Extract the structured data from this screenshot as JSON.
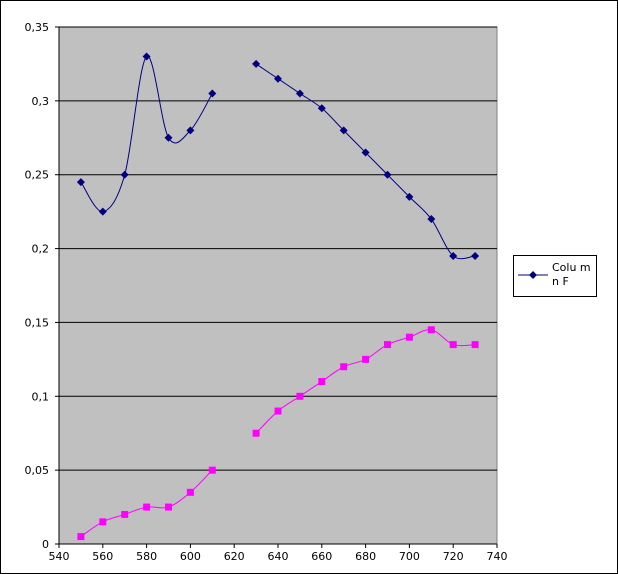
{
  "chart_data": {
    "type": "line",
    "title": "",
    "xlabel": "",
    "ylabel": "",
    "xlim": [
      540,
      740
    ],
    "ylim": [
      0,
      0.35
    ],
    "x_ticks": [
      "540",
      "560",
      "580",
      "600",
      "620",
      "640",
      "660",
      "680",
      "700",
      "720",
      "740"
    ],
    "y_ticks": [
      "0",
      "0,05",
      "0,1",
      "0,15",
      "0,2",
      "0,25",
      "0,3",
      "0,35"
    ],
    "grid": "horizontal",
    "plot_background": "#c0c0c0",
    "legend_position": "right",
    "series": [
      {
        "name": "Column F",
        "color": "#000080",
        "marker": "diamond",
        "points": [
          [
            550,
            0.245
          ],
          [
            560,
            0.225
          ],
          [
            570,
            0.25
          ],
          [
            580,
            0.33
          ],
          [
            590,
            0.275
          ],
          [
            600,
            0.28
          ],
          [
            610,
            0.305
          ],
          [
            630,
            0.325
          ],
          [
            640,
            0.315
          ],
          [
            650,
            0.305
          ],
          [
            660,
            0.295
          ],
          [
            670,
            0.28
          ],
          [
            680,
            0.265
          ],
          [
            690,
            0.25
          ],
          [
            700,
            0.235
          ],
          [
            710,
            0.22
          ],
          [
            720,
            0.195
          ],
          [
            730,
            0.195
          ]
        ]
      },
      {
        "color": "#ff00ff",
        "marker": "square",
        "points": [
          [
            550,
            0.005
          ],
          [
            560,
            0.015
          ],
          [
            570,
            0.02
          ],
          [
            580,
            0.025
          ],
          [
            590,
            0.025
          ],
          [
            600,
            0.035
          ],
          [
            610,
            0.05
          ],
          [
            630,
            0.075
          ],
          [
            640,
            0.09
          ],
          [
            650,
            0.1
          ],
          [
            660,
            0.11
          ],
          [
            670,
            0.12
          ],
          [
            680,
            0.125
          ],
          [
            690,
            0.135
          ],
          [
            700,
            0.14
          ],
          [
            710,
            0.145
          ],
          [
            720,
            0.135
          ],
          [
            730,
            0.135
          ]
        ]
      }
    ],
    "legend": {
      "label": "Colu mn F"
    }
  }
}
